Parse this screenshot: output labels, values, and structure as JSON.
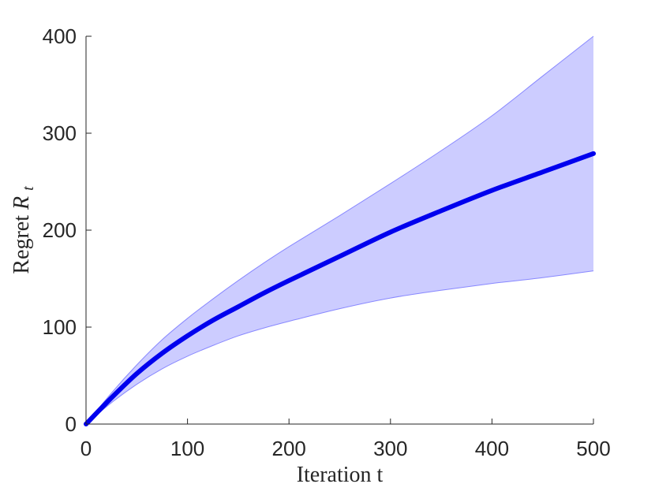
{
  "chart_data": {
    "type": "line",
    "title": "",
    "xlabel": "Iteration t",
    "ylabel": {
      "prefix": "Regret ",
      "symbol": "R",
      "subscript": "t"
    },
    "xlim": [
      0,
      500
    ],
    "ylim": [
      0,
      400
    ],
    "xticks": [
      0,
      100,
      200,
      300,
      400,
      500
    ],
    "yticks": [
      0,
      100,
      200,
      300,
      400
    ],
    "xtick_labels": [
      "0",
      "100",
      "200",
      "300",
      "400",
      "500"
    ],
    "ytick_labels": [
      "0",
      "100",
      "200",
      "300",
      "400"
    ],
    "grid": false,
    "legend": "none",
    "x": [
      0,
      25,
      50,
      75,
      100,
      125,
      150,
      175,
      200,
      250,
      300,
      350,
      400,
      450,
      500
    ],
    "series": [
      {
        "role": "mean",
        "color": "#0000ee",
        "values": [
          0,
          27,
          52,
          73,
          91,
          107,
          121,
          135,
          148,
          173,
          198,
          220,
          241,
          260,
          279
        ]
      }
    ],
    "band": {
      "role": "spread",
      "fill": "#ccccff",
      "stroke": "#8888ff",
      "upper": [
        0,
        32,
        61,
        87,
        109,
        129,
        148,
        166,
        183,
        215,
        248,
        282,
        318,
        359,
        400
      ],
      "lower": [
        0,
        22,
        41,
        57,
        70,
        81,
        91,
        99,
        106,
        119,
        130,
        138,
        145,
        151,
        158
      ]
    },
    "colors": {
      "axis": "#262626",
      "mean_line": "#0000ee",
      "band_fill": "#ccccff",
      "band_edge": "#8888ff"
    }
  }
}
